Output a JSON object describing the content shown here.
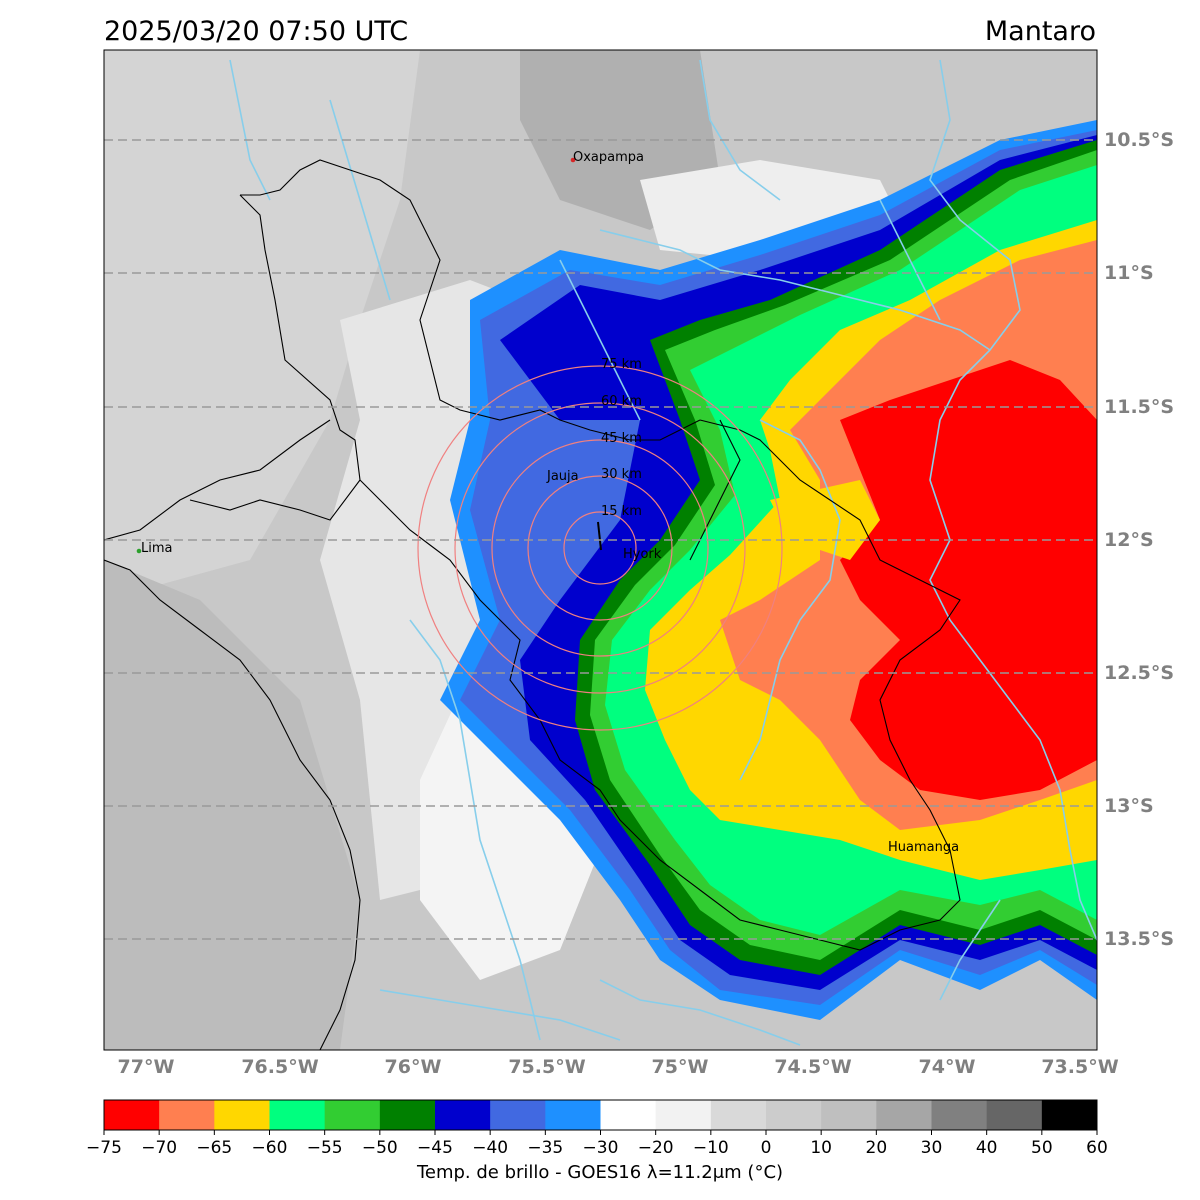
{
  "header": {
    "timestamp": "2025/03/20 07:50 UTC",
    "region": "Mantaro"
  },
  "map": {
    "lat_labels": [
      "10.5°S",
      "11°S",
      "11.5°S",
      "12°S",
      "12.5°S",
      "13°S",
      "13.5°S"
    ],
    "lon_labels": [
      "77°W",
      "76.5°W",
      "76°W",
      "75.5°W",
      "75°W",
      "74.5°W",
      "74°W",
      "73.5°W"
    ],
    "cities": [
      {
        "name": "Oxapampa",
        "color": "#d62728"
      },
      {
        "name": "Jauja",
        "color": "#000000"
      },
      {
        "name": "Huamanga",
        "color": "#000000"
      },
      {
        "name": "Lima",
        "color": "#2ca02c"
      }
    ],
    "radar_site": "Hyork",
    "range_rings": [
      "15 km",
      "30 km",
      "45 km",
      "60 km",
      "75 km"
    ],
    "colors": {
      "river": "#87ceeb",
      "grid": "#999999",
      "ring": "#f08080",
      "tick_label": "#808080"
    }
  },
  "colorbar": {
    "title": "Temp. de brillo - GOES16 λ=11.2μm (°C)",
    "ticks": [
      "−75",
      "−70",
      "−65",
      "−60",
      "−55",
      "−50",
      "−45",
      "−40",
      "−35",
      "−30",
      "−20",
      "−10",
      "0",
      "10",
      "20",
      "30",
      "40",
      "50",
      "60"
    ],
    "colors": [
      "#ff0000",
      "#ff7f50",
      "#ffd700",
      "#00ff7f",
      "#32cd32",
      "#008000",
      "#0000cd",
      "#4169e1",
      "#1e90ff",
      "#ffffff",
      "#f2f2f2",
      "#d9d9d9",
      "#cccccc",
      "#bfbfbf",
      "#a6a6a6",
      "#808080",
      "#666666",
      "#000000"
    ]
  }
}
